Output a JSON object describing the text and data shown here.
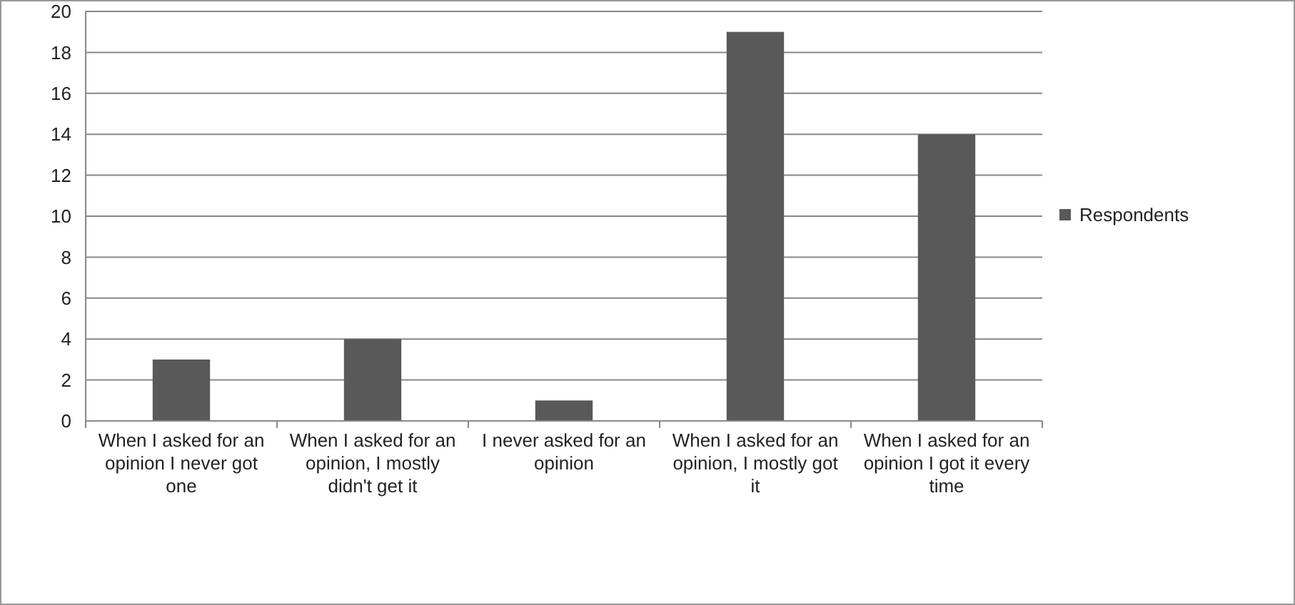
{
  "chart_data": {
    "type": "bar",
    "categories": [
      "When I asked for an opinion I never got one",
      "When I asked for an opinion, I mostly didn't get it",
      "I never asked for an opinion",
      "When I asked for an opinion, I mostly got it",
      "When I asked for an opinion I got it every time"
    ],
    "series": [
      {
        "name": "Respondents",
        "color": "#595959",
        "values": [
          3,
          4,
          1,
          19,
          14
        ]
      }
    ],
    "ylim": [
      0,
      20
    ],
    "yticks": [
      0,
      2,
      4,
      6,
      8,
      10,
      12,
      14,
      16,
      18,
      20
    ],
    "grid": "y",
    "legend": "right"
  }
}
